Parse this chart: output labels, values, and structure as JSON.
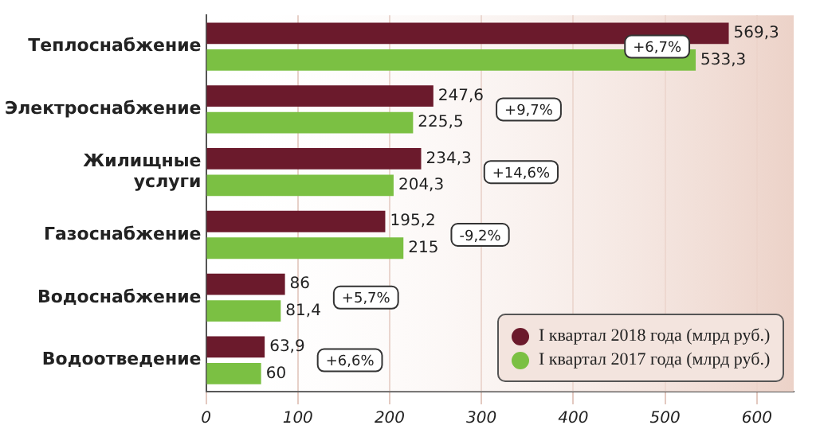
{
  "chart_data": {
    "type": "bar",
    "orientation": "horizontal",
    "categories": [
      "Теплоснабжение",
      "Электроснабжение",
      "Жилищные услуги",
      "Газоснабжение",
      "Водоснабжение",
      "Водоотведение"
    ],
    "series": [
      {
        "name": "I квартал 2018 года (млрд руб.)",
        "color": "#6b1a2c",
        "values": [
          569.3,
          247.6,
          234.3,
          195.2,
          86,
          63.9
        ],
        "value_labels": [
          "569,3",
          "247,6",
          "234,3",
          "195,2",
          "86",
          "63,9"
        ]
      },
      {
        "name": "I квартал 2017 года (млрд руб.)",
        "color": "#7bc043",
        "values": [
          533.3,
          225.5,
          204.3,
          215,
          81.4,
          60
        ],
        "value_labels": [
          "533,3",
          "225,5",
          "204,3",
          "215",
          "81,4",
          "60"
        ]
      }
    ],
    "xlim": [
      0,
      640
    ],
    "xticks": [
      0,
      100,
      200,
      300,
      400,
      500,
      600
    ],
    "grid": "x",
    "legend": "bottom right",
    "annotations": [
      "+6,7%",
      "+9,7%",
      "+14,6%",
      "-9,2%",
      "+5,7%",
      "+6,6%"
    ]
  }
}
